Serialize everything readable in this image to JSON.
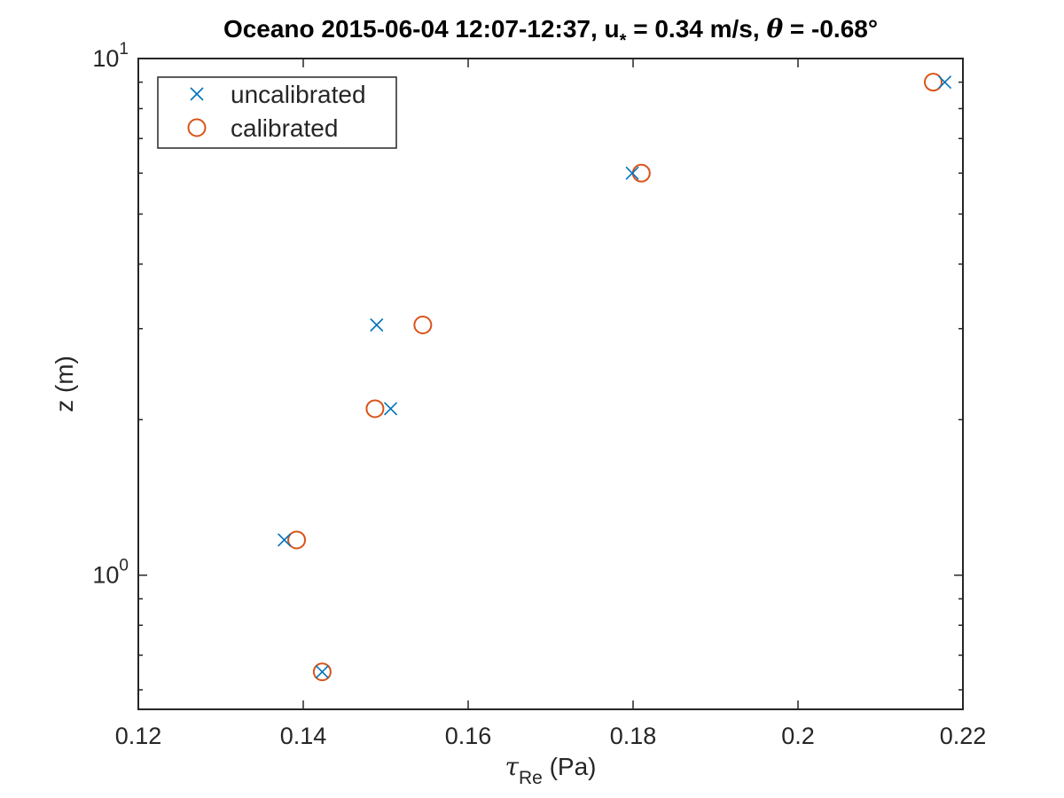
{
  "chart_data": {
    "type": "scatter",
    "title": {
      "prefix": "Oceano 2015-06-04 12:07-12:37, u",
      "ustar_sub": "*",
      "middle": " = 0.34 m/s, ",
      "theta": "θ",
      "suffix": " = -0.68°"
    },
    "xlabel": {
      "symbol": "τ",
      "sub": "Re",
      "unit": " (Pa)"
    },
    "ylabel": "z (m)",
    "xlim": [
      0.12,
      0.22
    ],
    "ylim": [
      0.55,
      10
    ],
    "y_scale": "log",
    "x_ticks": [
      {
        "value": 0.12,
        "label": "0.12"
      },
      {
        "value": 0.14,
        "label": "0.14"
      },
      {
        "value": 0.16,
        "label": "0.16"
      },
      {
        "value": 0.18,
        "label": "0.18"
      },
      {
        "value": 0.2,
        "label": "0.2"
      },
      {
        "value": 0.22,
        "label": "0.22"
      }
    ],
    "y_major_ticks": [
      {
        "value": 1,
        "base": "10",
        "exp": "0"
      },
      {
        "value": 10,
        "base": "10",
        "exp": "1"
      }
    ],
    "y_minor_ticks": [
      0.6,
      0.7,
      0.8,
      0.9,
      2,
      3,
      4,
      5,
      6,
      7,
      8,
      9
    ],
    "grid": false,
    "legend_position": "top-left",
    "series": [
      {
        "name": "uncalibrated",
        "marker": "x",
        "color": "#0072BD",
        "x": [
          0.1423,
          0.1377,
          0.1506,
          0.1489,
          0.1799,
          0.2178
        ],
        "y": [
          0.65,
          1.17,
          2.1,
          3.05,
          6.0,
          9.0
        ]
      },
      {
        "name": "calibrated",
        "marker": "o",
        "color": "#D95319",
        "x": [
          0.1423,
          0.1392,
          0.1487,
          0.1545,
          0.181,
          0.2164
        ],
        "y": [
          0.65,
          1.17,
          2.1,
          3.05,
          6.0,
          9.0
        ]
      }
    ]
  }
}
